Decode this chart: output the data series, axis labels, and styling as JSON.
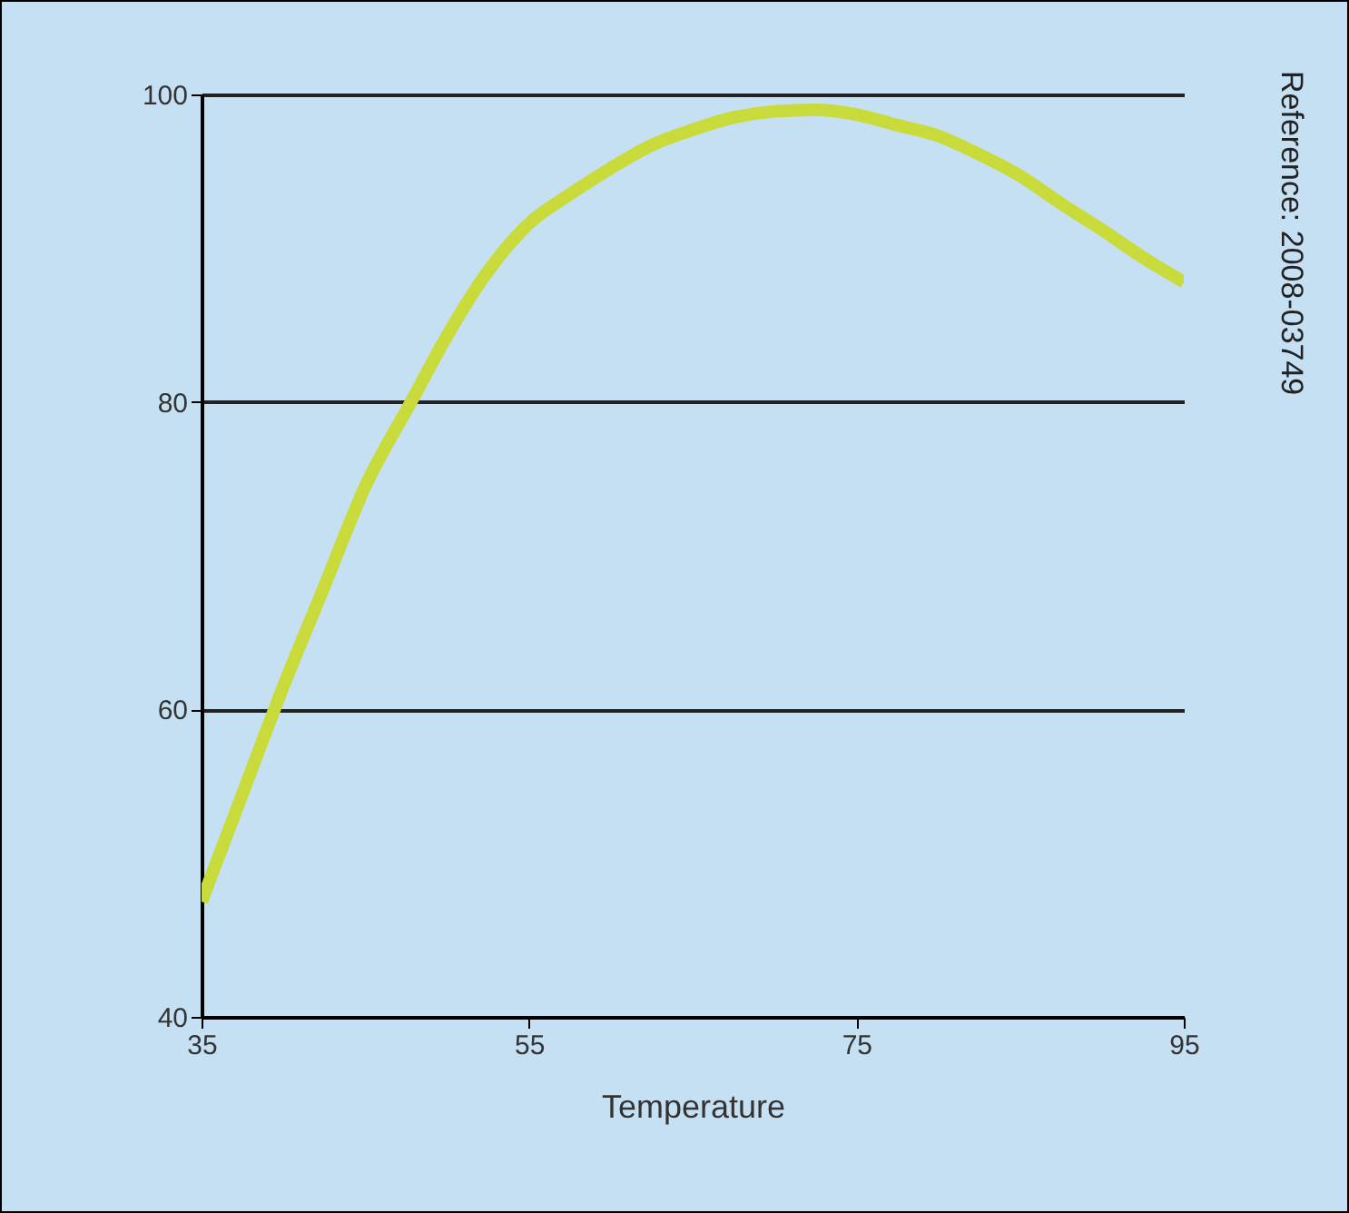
{
  "chart_data": {
    "type": "line",
    "xlabel": "Temperature",
    "annotations": [
      "Reference: 2008-03749"
    ],
    "x": [
      35,
      37.5,
      40,
      42.5,
      45,
      47.8,
      50,
      52.5,
      55,
      57.5,
      60,
      62.5,
      65,
      67.5,
      70,
      72.5,
      75,
      77.5,
      80,
      82.5,
      85,
      87.5,
      90,
      92.5,
      95
    ],
    "series": [
      {
        "color": "#c9db3a",
        "values": [
          47.5,
          54.5,
          61.5,
          68,
          74.5,
          80,
          84.3,
          88.5,
          91.6,
          93.5,
          95.2,
          96.7,
          97.7,
          98.5,
          98.9,
          99,
          98.7,
          98,
          97.3,
          96.1,
          94.7,
          92.9,
          91.2,
          89.4,
          87.8
        ]
      }
    ],
    "xlim": [
      35,
      95
    ],
    "xticks": [
      35,
      55,
      75,
      95
    ],
    "ylim": [
      40,
      100
    ],
    "yticks": [
      40,
      60,
      80,
      100
    ],
    "grid": "y"
  }
}
